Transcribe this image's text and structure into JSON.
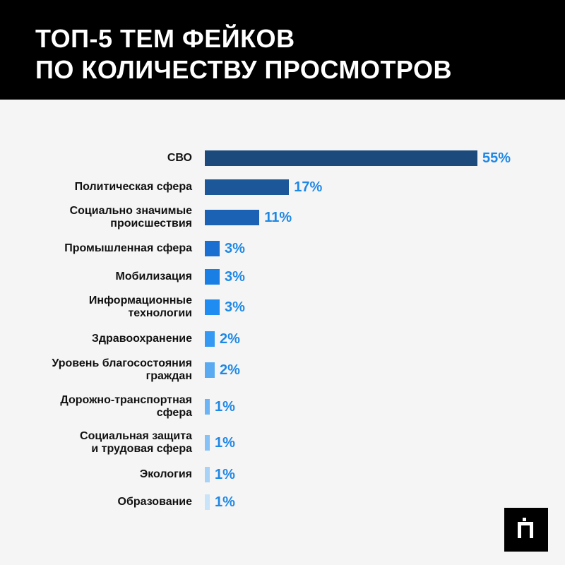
{
  "header": {
    "title_line1": "ТОП-5 ТЕМ ФЕЙКОВ",
    "title_line2": "ПО КОЛИЧЕСТВУ ПРОСМОТРОВ"
  },
  "chart_data": {
    "type": "bar",
    "orientation": "horizontal",
    "categories": [
      [
        "СВО"
      ],
      [
        "Политическая сфера"
      ],
      [
        "Социально значимые",
        "происшествия"
      ],
      [
        "Промышленная сфера"
      ],
      [
        "Мобилизация"
      ],
      [
        "Информационные",
        "технологии"
      ],
      [
        "Здравоохранение"
      ],
      [
        "Уровень благосостояния",
        "граждан"
      ],
      [
        "Дорожно-транспортная",
        "сфера"
      ],
      [
        "Социальная защита",
        "и трудовая сфера"
      ],
      [
        "Экология"
      ],
      [
        "Образование"
      ]
    ],
    "values": [
      55,
      17,
      11,
      3,
      3,
      3,
      2,
      2,
      1,
      1,
      1,
      1
    ],
    "value_labels": [
      "55%",
      "17%",
      "11%",
      "3%",
      "3%",
      "3%",
      "2%",
      "2%",
      "1%",
      "1%",
      "1%",
      "1%"
    ],
    "bar_colors": [
      "#1c4a7c",
      "#1c5799",
      "#1b62b4",
      "#1a6fd0",
      "#1a7fe5",
      "#1e8cf0",
      "#3399f2",
      "#5aaaf2",
      "#6cb4f3",
      "#86c2f5",
      "#a8d2f6",
      "#c9e3f8"
    ],
    "value_color": "#1e88e5",
    "xlim": [
      0,
      55
    ],
    "grid": false,
    "legend": "none"
  },
  "logo": {
    "name": "brand-logo"
  }
}
